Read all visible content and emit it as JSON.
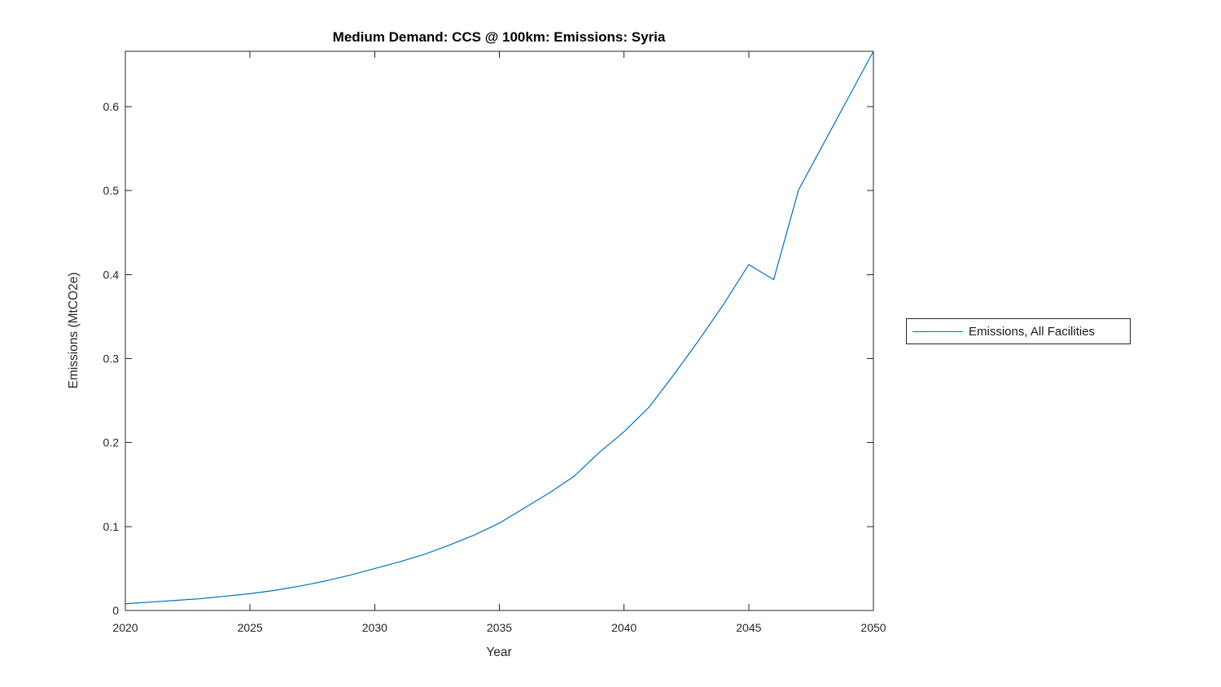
{
  "figure": {
    "background": "#ffffff"
  },
  "chart_data": {
    "type": "line",
    "title": "Medium Demand: CCS @ 100km: Emissions: Syria",
    "xlabel": "Year",
    "ylabel": "Emissions (MtCO2e)",
    "xlim": [
      2020,
      2050
    ],
    "ylim": [
      0,
      0.666
    ],
    "x_ticks": [
      2020,
      2025,
      2030,
      2035,
      2040,
      2045,
      2050
    ],
    "y_ticks": [
      0,
      0.1,
      0.2,
      0.3,
      0.4,
      0.5,
      0.6
    ],
    "grid": false,
    "box": true,
    "legend_position": "outside-right",
    "series": [
      {
        "name": "Emissions, All Facilities",
        "color": "#0072BD",
        "x": [
          2020,
          2021,
          2022,
          2023,
          2024,
          2025,
          2026,
          2027,
          2028,
          2029,
          2030,
          2031,
          2032,
          2033,
          2034,
          2035,
          2036,
          2037,
          2038,
          2039,
          2040,
          2041,
          2042,
          2043,
          2044,
          2045,
          2046,
          2047,
          2048,
          2049,
          2050
        ],
        "values": [
          0.008,
          0.01,
          0.012,
          0.014,
          0.017,
          0.02,
          0.024,
          0.029,
          0.035,
          0.042,
          0.05,
          0.058,
          0.067,
          0.078,
          0.09,
          0.104,
          0.122,
          0.14,
          0.16,
          0.188,
          0.213,
          0.242,
          0.281,
          0.322,
          0.365,
          0.412,
          0.394,
          0.501,
          0.556,
          0.611,
          0.666
        ]
      }
    ]
  },
  "colors": {
    "line": "#0072BD",
    "axis": "#262626",
    "title_text": "#000000"
  }
}
